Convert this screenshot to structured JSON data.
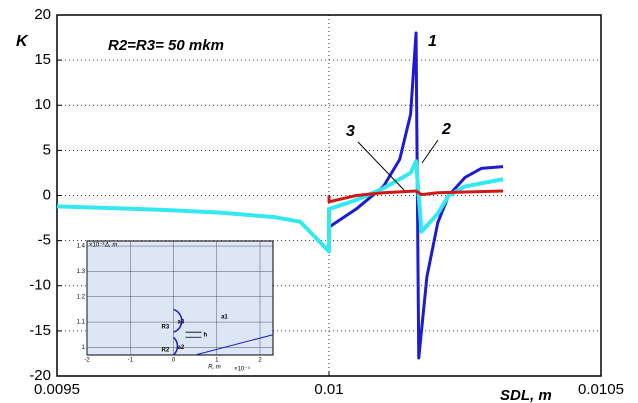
{
  "chart_data": {
    "type": "line",
    "ylabel": "K",
    "xlabel": "SDL, m",
    "annotation": "R2=R3= 50 mkm",
    "xlim": [
      0.0095,
      0.0105
    ],
    "xticks": [
      0.0095,
      0.01,
      0.0105
    ],
    "ylim": [
      -20,
      20
    ],
    "yticks": [
      -20,
      -15,
      -10,
      -5,
      0,
      5,
      10,
      15,
      20
    ],
    "grid": true,
    "series": [
      {
        "name": "1",
        "color": "#1c1cd0",
        "x": [
          0.01,
          0.01005,
          0.0101,
          0.01013,
          0.01015,
          0.01016,
          0.010165,
          0.01018,
          0.0102,
          0.01022,
          0.01025,
          0.01028,
          0.01032
        ],
        "values": [
          -3.5,
          -1.5,
          1,
          4,
          9,
          18,
          -18,
          -9,
          -3,
          0,
          2,
          3,
          3.2
        ]
      },
      {
        "name": "2",
        "color": "#33e8ee",
        "x": [
          0.0095,
          0.0096,
          0.0097,
          0.0098,
          0.0099,
          0.009947,
          0.01,
          0.01,
          0.01005,
          0.0101,
          0.01015,
          0.01016,
          0.01017,
          0.0102,
          0.01022,
          0.01025,
          0.01032
        ],
        "values": [
          -1.2,
          -1.4,
          -1.6,
          -1.9,
          -2.4,
          -2.9,
          -6.2,
          -1.5,
          -0.5,
          0.8,
          2.5,
          3.8,
          -4,
          -2,
          0,
          1,
          1.8
        ]
      },
      {
        "name": "3",
        "color": "#d01818",
        "x": [
          0.01,
          0.01,
          0.01005,
          0.0101,
          0.01016,
          0.01017,
          0.0102,
          0.01032
        ],
        "values": [
          0,
          -0.7,
          0,
          0.3,
          0.5,
          0.1,
          0.3,
          0.5
        ]
      }
    ]
  },
  "inset": {
    "xlim": [
      -2,
      2.3
    ],
    "ylim": [
      0.97,
      1.42
    ],
    "xticks": [
      -2,
      -1,
      0,
      1,
      2
    ],
    "yticks": [
      1,
      1.1,
      1.2,
      1.3,
      1.4
    ],
    "xlabel": "R, m",
    "xscale": "×10⁻⁴",
    "ylabel": "Δ, m",
    "yscale": "×10⁻³",
    "labels": [
      "a3",
      "a2",
      "a1",
      "R3",
      "R2",
      "h"
    ]
  }
}
